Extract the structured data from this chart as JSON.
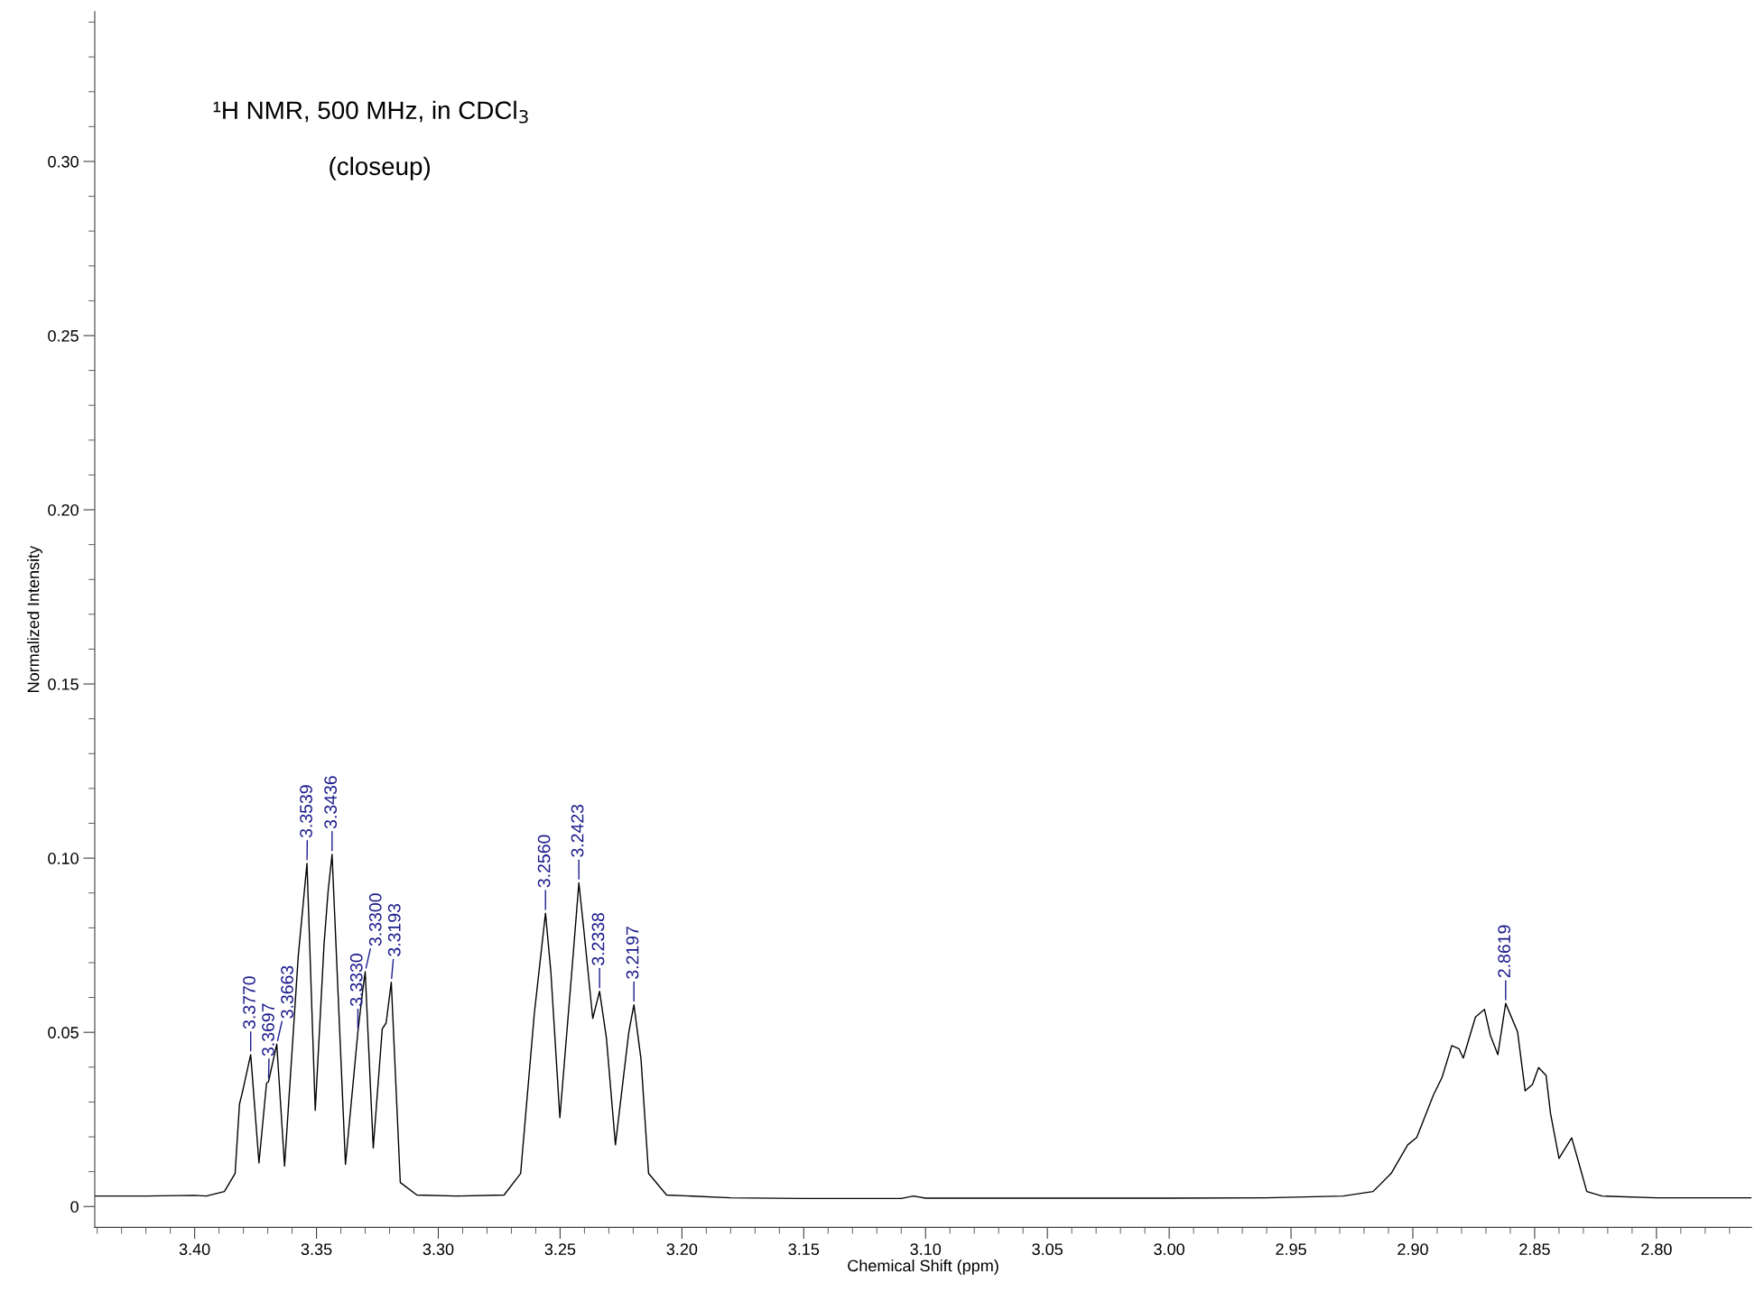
{
  "chart_data": {
    "type": "line",
    "title": "¹H NMR, 500 MHz, in CDCl$_{3}$",
    "subtitle": "(closeup)",
    "xlabel": "Chemical Shift (ppm)",
    "ylabel": "Normalized Intensity",
    "xlim": [
      3.441,
      2.761
    ],
    "ylim": [
      -0.006,
      0.343
    ],
    "xticks": [
      {
        "value": 3.4,
        "label": "3.40"
      },
      {
        "value": 3.35,
        "label": "3.35"
      },
      {
        "value": 3.3,
        "label": "3.30"
      },
      {
        "value": 3.25,
        "label": "3.25"
      },
      {
        "value": 3.2,
        "label": "3.20"
      },
      {
        "value": 3.15,
        "label": "3.15"
      },
      {
        "value": 3.1,
        "label": "3.10"
      },
      {
        "value": 3.05,
        "label": "3.05"
      },
      {
        "value": 3.0,
        "label": "3.00"
      },
      {
        "value": 2.95,
        "label": "2.95"
      },
      {
        "value": 2.9,
        "label": "2.90"
      },
      {
        "value": 2.85,
        "label": "2.85"
      },
      {
        "value": 2.8,
        "label": "2.80"
      }
    ],
    "yticks": [
      0,
      {
        "value": 0.05,
        "label": "0.05"
      },
      {
        "value": 0.1,
        "label": "0.10"
      },
      {
        "value": 0.15,
        "label": "0.15"
      },
      {
        "value": 0.2,
        "label": "0.20"
      },
      {
        "value": 0.25,
        "label": "0.25"
      },
      {
        "value": 0.3,
        "label": "0.30"
      }
    ],
    "grid": false,
    "series": [
      {
        "color": "#000000",
        "x": [
          3.441,
          3.42,
          3.4,
          3.3952,
          3.3878,
          3.3834,
          3.3816,
          3.3804,
          3.377,
          3.3736,
          3.3705,
          3.3697,
          3.3663,
          3.3631,
          3.3575,
          3.3539,
          3.3505,
          3.3469,
          3.3452,
          3.3436,
          3.3381,
          3.333,
          3.331,
          3.33,
          3.3267,
          3.323,
          3.3214,
          3.3193,
          3.3156,
          3.3088,
          3.2927,
          3.273,
          3.2662,
          3.2606,
          3.256,
          3.2538,
          3.2501,
          3.2451,
          3.2423,
          3.2402,
          3.2366,
          3.2338,
          3.231,
          3.2273,
          3.2218,
          3.2197,
          3.2168,
          3.2137,
          3.2063,
          3.18,
          3.15,
          3.11,
          3.105,
          3.1,
          3.05,
          3.0,
          2.96,
          2.9286,
          2.9163,
          2.9089,
          2.9021,
          2.8984,
          2.8916,
          2.888,
          2.884,
          2.8811,
          2.8793,
          2.8743,
          2.8706,
          2.8682,
          2.8651,
          2.8619,
          2.857,
          2.8539,
          2.8509,
          2.8484,
          2.8453,
          2.8435,
          2.84,
          2.8348,
          2.8317,
          2.8286,
          2.8224,
          2.8,
          2.761
        ],
        "values": [
          0.003,
          0.003,
          0.0032,
          0.003,
          0.0043,
          0.0095,
          0.0294,
          0.0328,
          0.0436,
          0.0125,
          0.0354,
          0.0358,
          0.0466,
          0.0116,
          0.0717,
          0.0985,
          0.0276,
          0.0752,
          0.0907,
          0.1011,
          0.0121,
          0.0501,
          0.0622,
          0.0674,
          0.0168,
          0.051,
          0.0527,
          0.0644,
          0.0069,
          0.0033,
          0.003,
          0.0033,
          0.0095,
          0.0553,
          0.0842,
          0.0674,
          0.0255,
          0.0683,
          0.0929,
          0.079,
          0.054,
          0.0618,
          0.0484,
          0.0177,
          0.0501,
          0.0579,
          0.0423,
          0.0095,
          0.0033,
          0.0025,
          0.0023,
          0.0023,
          0.003,
          0.0024,
          0.0024,
          0.0024,
          0.0025,
          0.003,
          0.0043,
          0.0095,
          0.0177,
          0.0198,
          0.0319,
          0.0371,
          0.0462,
          0.0453,
          0.0426,
          0.0544,
          0.0566,
          0.0492,
          0.0436,
          0.0583,
          0.0501,
          0.0332,
          0.035,
          0.0399,
          0.0376,
          0.0268,
          0.0138,
          0.0197,
          0.0121,
          0.0043,
          0.003,
          0.0025,
          0.0025
        ]
      }
    ],
    "annotations": [
      {
        "text": "3.3770",
        "x": 3.377,
        "y": 0.0436
      },
      {
        "text": "3.3697",
        "x": 3.3697,
        "y": 0.0358
      },
      {
        "text": "3.3663",
        "x": 3.3663,
        "y": 0.0466
      },
      {
        "text": "3.3539",
        "x": 3.3539,
        "y": 0.0985
      },
      {
        "text": "3.3436",
        "x": 3.3436,
        "y": 0.1011
      },
      {
        "text": "3.3330",
        "x": 3.333,
        "y": 0.0501
      },
      {
        "text": "3.3300",
        "x": 3.33,
        "y": 0.0674
      },
      {
        "text": "3.3193",
        "x": 3.3193,
        "y": 0.0644
      },
      {
        "text": "3.2560",
        "x": 3.256,
        "y": 0.0842
      },
      {
        "text": "3.2423",
        "x": 3.2423,
        "y": 0.0929
      },
      {
        "text": "3.2338",
        "x": 3.2338,
        "y": 0.0618
      },
      {
        "text": "3.2197",
        "x": 3.2197,
        "y": 0.0579
      },
      {
        "text": "2.8619",
        "x": 2.8619,
        "y": 0.0583
      }
    ]
  }
}
